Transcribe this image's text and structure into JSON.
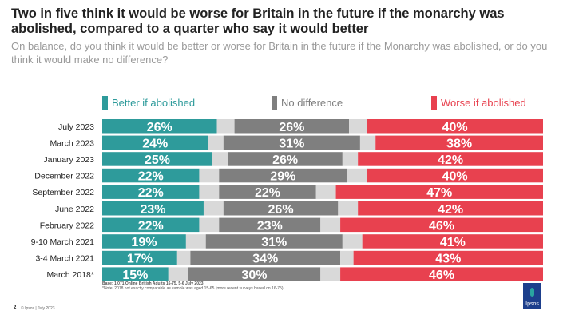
{
  "title": "Two in five think it would be worse for Britain in the future if the monarchy was abolished, compared to a quarter who say it would better",
  "subtitle": "On balance, do you think it would be better or worse for Britain in the future if the Monarchy was abolished, or do you think it would make no difference?",
  "footer": {
    "base": "Base: 1,071 Online British Adults 16-75, 5-6 July 2023",
    "note": "*Note: 2018 not exactly comparable as sample was aged 15-65 (more recent surveys based on 16-75)",
    "copyright": "© Ipsos | July 2023",
    "page": "2",
    "logo": "Ipsos"
  },
  "chart_data": {
    "type": "bar",
    "orientation": "horizontal",
    "stacked": true,
    "categories": [
      "July 2023",
      "March 2023",
      "January 2023",
      "December 2022",
      "September 2022",
      "June 2022",
      "February 2022",
      "9-10 March 2021",
      "3-4 March 2021",
      "March 2018*"
    ],
    "series": [
      {
        "name": "Better if abolished",
        "color": "#2e9b9b",
        "values": [
          26,
          24,
          25,
          22,
          22,
          23,
          22,
          19,
          17,
          15
        ]
      },
      {
        "name": "No difference",
        "color": "#7f7f7f",
        "values": [
          26,
          31,
          26,
          29,
          22,
          26,
          23,
          31,
          34,
          30
        ]
      },
      {
        "name": "Worse if abolished",
        "color": "#e8414f",
        "values": [
          40,
          38,
          42,
          40,
          47,
          42,
          46,
          41,
          43,
          46
        ]
      }
    ],
    "remainder_color": "#d9d9d9",
    "xlim": [
      0,
      100
    ],
    "legend": "top",
    "grid": false
  }
}
